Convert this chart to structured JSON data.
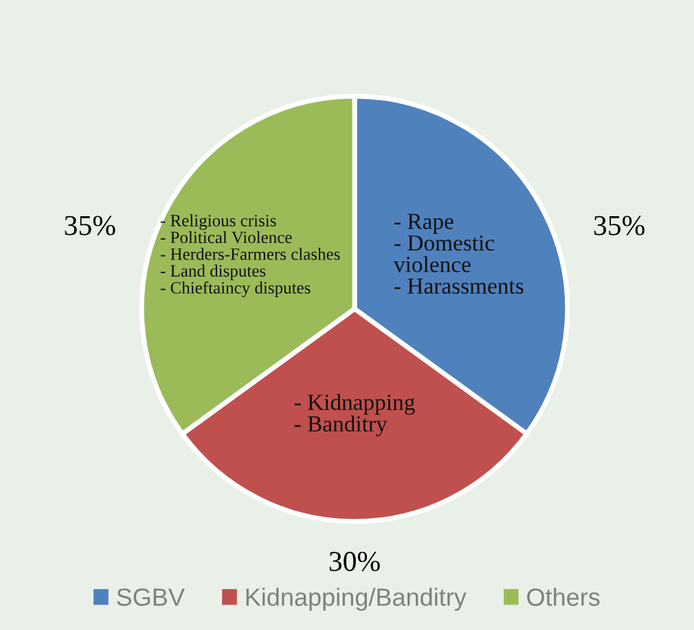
{
  "chart_data": {
    "type": "pie",
    "categories": [
      "SGBV",
      "Kidnapping/Banditry",
      "Others"
    ],
    "values": [
      35,
      30,
      35
    ],
    "colors": [
      "#4f81bd",
      "#c0504d",
      "#9bbb59"
    ],
    "value_labels": [
      "35%",
      "30%",
      "35%"
    ],
    "annotations": [
      "- Rape\n- Domestic\nviolence\n- Harassments",
      "- Kidnapping\n- Banditry",
      "- Religious crisis\n- Political Violence\n- Herders-Farmers clashes\n- Land disputes\n- Chieftaincy disputes"
    ],
    "legend": "bottom"
  }
}
